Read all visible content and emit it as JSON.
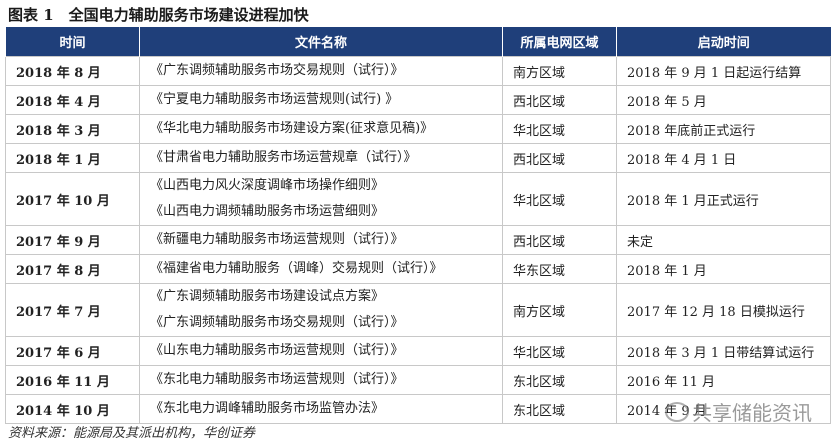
{
  "title": "图表 1　全国电力辅助服务市场建设进程加快",
  "headers": [
    "时间",
    "文件名称",
    "所属电网区域",
    "启动时间"
  ],
  "rows": [
    {
      "time": "2018 年 8 月",
      "docs": [
        "《广东调频辅助服务市场交易规则（试行）》"
      ],
      "region": "南方区域",
      "start": "2018 年 9 月 1 日起运行结算"
    },
    {
      "time": "2018 年 4 月",
      "docs": [
        "《宁夏电力辅助服务市场运营规则(试行) 》"
      ],
      "region": "西北区域",
      "start": "2018 年 5 月"
    },
    {
      "time": "2018 年 3 月",
      "docs": [
        "《华北电力辅助服务市场建设方案(征求意见稿)》"
      ],
      "region": "华北区域",
      "start": "2018 年底前正式运行"
    },
    {
      "time": "2018 年 1 月",
      "docs": [
        "《甘肃省电力辅助服务市场运营规章（试行）》"
      ],
      "region": "西北区域",
      "start": "2018 年 4 月 1 日"
    },
    {
      "time": "2017 年 10 月",
      "docs": [
        "《山西电力风火深度调峰市场操作细则》",
        "《山西电力调频辅助服务市场运营细则》"
      ],
      "region": "华北区域",
      "start": "2018 年 1 月正式运行"
    },
    {
      "time": "2017 年 9 月",
      "docs": [
        "《新疆电力辅助服务市场运营规则（试行）》"
      ],
      "region": "西北区域",
      "start": "未定"
    },
    {
      "time": "2017 年 8 月",
      "docs": [
        "《福建省电力辅助服务（调峰）交易规则（试行）》"
      ],
      "region": "华东区域",
      "start": "2018 年 1 月"
    },
    {
      "time": "2017 年 7 月",
      "docs": [
        "《广东调频辅助服务市场建设试点方案》",
        "《广东调频辅助服务市场交易规则（试行）》"
      ],
      "region": "南方区域",
      "start": "2017 年 12 月 18 日模拟运行"
    },
    {
      "time": "2017 年 6 月",
      "docs": [
        "《山东电力辅助服务市场运营规则（试行）》"
      ],
      "region": "华北区域",
      "start": "2018 年 3 月 1 日带结算试运行"
    },
    {
      "time": "2016 年 11 月",
      "docs": [
        "《东北电力辅助服务市场运营规则（试行）》"
      ],
      "region": "东北区域",
      "start": "2016 年 11 月"
    },
    {
      "time": "2014 年 10 月",
      "docs": [
        "《东北电力调峰辅助服务市场监管办法》"
      ],
      "region": "东北区域",
      "start": "2014 年 9 月"
    }
  ],
  "source": "资料来源：能源局及其派出机构，华创证券",
  "watermark": "共享储能资讯",
  "colors": {
    "header_bg": "#1f3f7a"
  }
}
